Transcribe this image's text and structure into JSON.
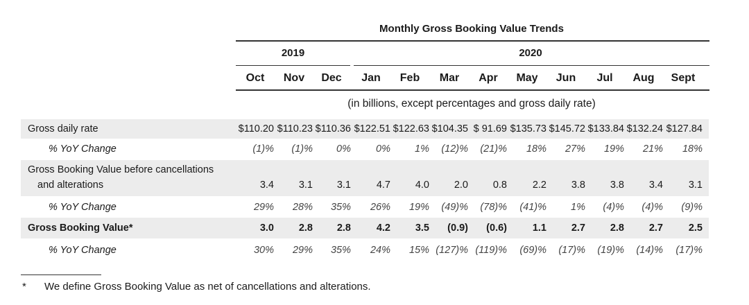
{
  "table": {
    "title": "Monthly Gross Booking Value Trends",
    "years": [
      "2019",
      "2020"
    ],
    "months": [
      "Oct",
      "Nov",
      "Dec",
      "Jan",
      "Feb",
      "Mar",
      "Apr",
      "May",
      "Jun",
      "Jul",
      "Aug",
      "Sept"
    ],
    "units_note": "(in billions, except percentages and gross daily rate)",
    "rows": [
      {
        "label": "Gross daily rate",
        "style": "normal",
        "values": [
          "$110.20",
          "$110.23",
          "$110.36",
          "$122.51",
          "$122.63",
          "$104.35",
          "$ 91.69",
          "$135.73",
          "$145.72",
          "$133.84",
          "$132.24",
          "$127.84"
        ]
      },
      {
        "label": "% YoY Change",
        "style": "italic",
        "values": [
          "(1)%",
          "(1)%",
          "0%",
          "0%",
          "1%",
          "(12)%",
          "(21)%",
          "18%",
          "27%",
          "19%",
          "21%",
          "18%"
        ]
      },
      {
        "label": "Gross Booking Value before cancellations",
        "label_line2": "and alterations",
        "style": "normal",
        "values": [
          "3.4",
          "3.1",
          "3.1",
          "4.7",
          "4.0",
          "2.0",
          "0.8",
          "2.2",
          "3.8",
          "3.8",
          "3.4",
          "3.1"
        ]
      },
      {
        "label": "% YoY Change",
        "style": "italic",
        "values": [
          "29%",
          "28%",
          "35%",
          "26%",
          "19%",
          "(49)%",
          "(78)%",
          "(41)%",
          "1%",
          "(4)%",
          "(4)%",
          "(9)%"
        ]
      },
      {
        "label": "Gross Booking Value*",
        "style": "bold",
        "values": [
          "3.0",
          "2.8",
          "2.8",
          "4.2",
          "3.5",
          "(0.9)",
          "(0.6)",
          "1.1",
          "2.7",
          "2.8",
          "2.7",
          "2.5"
        ]
      },
      {
        "label": "% YoY Change",
        "style": "italic",
        "values": [
          "30%",
          "29%",
          "35%",
          "24%",
          "15%",
          "(127)%",
          "(119)%",
          "(69)%",
          "(17)%",
          "(19)%",
          "(14)%",
          "(17)%"
        ]
      }
    ]
  },
  "footnote": {
    "marker": "*",
    "text": "We define Gross Booking Value as net of cancellations and alterations."
  }
}
